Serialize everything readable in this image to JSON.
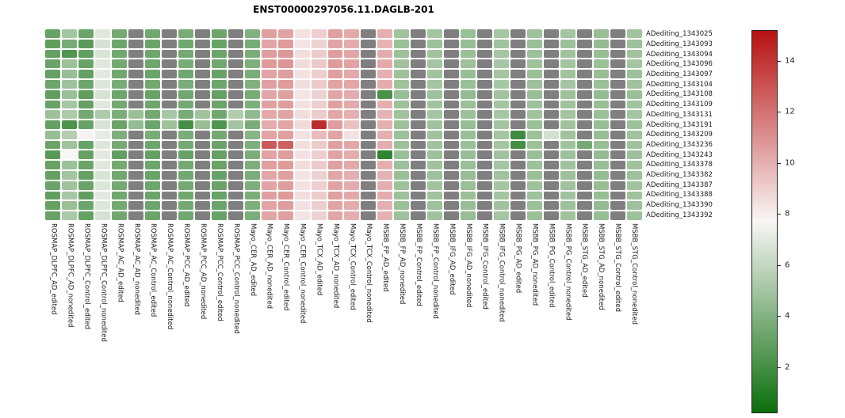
{
  "title": "ENST00000297056.11.DAGLB-201",
  "colors": {
    "na": "#7f7f7f",
    "low": "#0b6e0b",
    "mid": "#f9f6f6",
    "high": "#b71010",
    "background": "#ffffff"
  },
  "chart_data": {
    "type": "heatmap",
    "title": "ENST00000297056.11.DAGLB-201",
    "legend_position": "right",
    "na_color_meaning": "missing value (gray cell)",
    "rows": [
      "ADediting_1343025",
      "ADediting_1343093",
      "ADediting_1343094",
      "ADediting_1343096",
      "ADediting_1343097",
      "ADediting_1343104",
      "ADediting_1343108",
      "ADediting_1343109",
      "ADediting_1343131",
      "ADediting_1343191",
      "ADediting_1343209",
      "ADediting_1343236",
      "ADediting_1343243",
      "ADediting_1343378",
      "ADediting_1343382",
      "ADediting_1343387",
      "ADediting_1343388",
      "ADediting_1343390",
      "ADediting_1343392"
    ],
    "columns": [
      "ROSMAP_DLPFC_AD_edited",
      "ROSMAP_DLPFC_AD_nonedited",
      "ROSMAP_DLPFC_Control_edited",
      "ROSMAP_DLPFC_Control_nonedited",
      "ROSMAP_AC_AD_edited",
      "ROSMAP_AC_AD_nonedited",
      "ROSMAP_AC_Control_edited",
      "ROSMAP_AC_Control_nonedited",
      "ROSMAP_PCC_AD_edited",
      "ROSMAP_PCC_AD_nonedited",
      "ROSMAP_PCC_Control_edited",
      "ROSMAP_PCC_Control_nonedited",
      "Mayo_CER_AD_edited",
      "Mayo_CER_AD_nonedited",
      "Mayo_CER_Control_edited",
      "Mayo_CER_Control_nonedited",
      "Mayo_TCX_AD_edited",
      "Mayo_TCX_AD_nonedited",
      "Mayo_TCX_Control_edited",
      "Mayo_TCX_Control_nonedited",
      "MSBB_FP_AD_edited",
      "MSBB_FP_AD_nonedited",
      "MSBB_FP_Control_edited",
      "MSBB_FP_Control_nonedited",
      "MSBB_IFG_AD_edited",
      "MSBB_IFG_AD_nonedited",
      "MSBB_IFG_Control_edited",
      "MSBB_IFG_Control_nonedited",
      "MSBB_PG_AD_edited",
      "MSBB_PG_AD_nonedited",
      "MSBB_PG_Control_edited",
      "MSBB_PG_Control_nonedited",
      "MSBB_STG_AD_edited",
      "MSBB_STG_AD_nonedited",
      "MSBB_STG_Control_edited",
      "MSBB_STG_Control_nonedited"
    ],
    "values": [
      [
        3.1,
        5.0,
        3.2,
        6.9,
        3.5,
        null,
        3.4,
        null,
        3.6,
        null,
        3.3,
        null,
        3.9,
        10.5,
        10.4,
        8.4,
        9.0,
        10.5,
        10.2,
        null,
        10.0,
        4.9,
        null,
        5.0,
        null,
        4.7,
        null,
        5.1,
        null,
        4.8,
        null,
        5.0,
        null,
        4.6,
        null,
        4.9
      ],
      [
        2.8,
        3.6,
        2.7,
        6.6,
        3.3,
        null,
        3.2,
        null,
        3.4,
        null,
        3.1,
        null,
        3.6,
        10.3,
        10.7,
        8.3,
        8.9,
        10.4,
        10.1,
        null,
        9.9,
        4.7,
        null,
        4.8,
        null,
        4.6,
        null,
        4.9,
        null,
        4.7,
        null,
        4.8,
        null,
        4.5,
        null,
        4.8
      ],
      [
        3.0,
        2.4,
        2.9,
        6.7,
        3.4,
        null,
        3.3,
        null,
        3.5,
        null,
        3.2,
        null,
        3.7,
        10.6,
        10.8,
        8.5,
        9.1,
        10.6,
        10.3,
        null,
        10.1,
        4.8,
        null,
        4.9,
        null,
        4.7,
        null,
        5.0,
        null,
        4.8,
        null,
        4.9,
        null,
        4.6,
        null,
        4.9
      ],
      [
        3.2,
        4.8,
        3.1,
        6.9,
        3.5,
        null,
        3.3,
        null,
        3.6,
        null,
        3.4,
        null,
        3.8,
        10.7,
        10.9,
        8.6,
        9.2,
        10.7,
        10.4,
        null,
        10.2,
        4.9,
        null,
        5.0,
        null,
        4.8,
        null,
        5.1,
        null,
        4.9,
        null,
        5.0,
        null,
        4.7,
        null,
        5.0
      ],
      [
        3.0,
        4.6,
        3.0,
        7.0,
        3.4,
        null,
        3.2,
        null,
        3.4,
        null,
        3.1,
        null,
        3.7,
        10.4,
        10.6,
        8.4,
        9.0,
        10.5,
        10.2,
        null,
        10.0,
        4.8,
        null,
        4.9,
        null,
        4.6,
        null,
        5.0,
        null,
        4.7,
        null,
        4.9,
        null,
        4.6,
        null,
        4.8
      ],
      [
        3.3,
        4.9,
        3.3,
        6.8,
        3.6,
        null,
        3.4,
        null,
        3.7,
        null,
        3.3,
        null,
        3.9,
        10.5,
        10.7,
        8.5,
        9.1,
        10.4,
        10.3,
        null,
        10.1,
        4.9,
        null,
        5.0,
        null,
        4.7,
        null,
        5.1,
        null,
        4.8,
        null,
        5.0,
        null,
        4.7,
        null,
        4.9
      ],
      [
        2.9,
        4.7,
        2.8,
        6.6,
        3.3,
        null,
        3.1,
        null,
        3.4,
        null,
        3.0,
        null,
        3.6,
        10.3,
        10.5,
        8.3,
        8.9,
        10.3,
        10.1,
        null,
        2.2,
        4.6,
        null,
        4.8,
        null,
        4.5,
        null,
        4.9,
        null,
        4.6,
        null,
        4.8,
        null,
        4.5,
        null,
        4.7
      ],
      [
        3.1,
        5.1,
        3.0,
        6.9,
        3.5,
        null,
        3.3,
        null,
        3.5,
        null,
        3.2,
        null,
        3.8,
        10.5,
        10.6,
        8.4,
        9.0,
        10.5,
        10.2,
        null,
        10.0,
        4.8,
        null,
        4.9,
        null,
        4.7,
        null,
        5.0,
        null,
        4.8,
        null,
        4.9,
        null,
        4.6,
        null,
        4.9
      ],
      [
        4.8,
        5.3,
        3.5,
        5.3,
        3.7,
        4.7,
        3.5,
        5.1,
        3.6,
        4.9,
        3.4,
        5.4,
        4.4,
        10.2,
        10.4,
        8.5,
        9.1,
        10.3,
        10.0,
        null,
        9.9,
        4.9,
        null,
        5.0,
        null,
        4.8,
        null,
        5.1,
        null,
        4.9,
        null,
        5.0,
        null,
        4.7,
        null,
        5.0
      ],
      [
        3.0,
        2.3,
        3.1,
        6.7,
        3.2,
        4.5,
        3.3,
        4.8,
        2.0,
        4.6,
        2.4,
        5.0,
        3.7,
        10.1,
        10.3,
        8.6,
        14.3,
        10.6,
        9.4,
        null,
        10.0,
        4.8,
        null,
        4.9,
        null,
        4.6,
        null,
        5.0,
        null,
        4.7,
        null,
        4.9,
        null,
        4.6,
        null,
        4.8
      ],
      [
        4.6,
        5.5,
        7.8,
        7.1,
        3.8,
        null,
        3.6,
        null,
        3.7,
        null,
        3.5,
        null,
        4.1,
        10.4,
        10.5,
        8.4,
        9.6,
        10.4,
        8.4,
        null,
        10.0,
        4.8,
        null,
        4.9,
        null,
        4.7,
        null,
        5.0,
        1.8,
        4.8,
        6.5,
        4.9,
        null,
        4.6,
        null,
        4.9
      ],
      [
        3.2,
        4.9,
        3.1,
        6.8,
        3.5,
        null,
        3.3,
        null,
        3.5,
        null,
        3.2,
        null,
        3.8,
        12.8,
        12.6,
        8.5,
        9.1,
        10.5,
        10.2,
        null,
        10.1,
        4.8,
        null,
        4.9,
        null,
        4.7,
        null,
        5.0,
        2.0,
        4.8,
        null,
        4.9,
        3.5,
        4.6,
        null,
        4.9
      ],
      [
        2.6,
        7.7,
        3.0,
        7.0,
        2.9,
        null,
        3.0,
        null,
        3.1,
        null,
        3.0,
        null,
        3.7,
        10.4,
        10.6,
        8.4,
        9.0,
        10.4,
        10.1,
        null,
        1.4,
        4.7,
        null,
        4.8,
        null,
        4.6,
        null,
        4.9,
        null,
        4.7,
        null,
        4.8,
        null,
        4.5,
        null,
        4.8
      ],
      [
        3.1,
        4.8,
        3.2,
        6.9,
        3.5,
        null,
        3.3,
        null,
        3.5,
        null,
        3.2,
        null,
        3.8,
        10.5,
        10.7,
        8.5,
        9.1,
        10.5,
        10.2,
        null,
        10.0,
        4.8,
        null,
        4.9,
        null,
        4.7,
        null,
        5.0,
        null,
        4.8,
        null,
        4.9,
        null,
        4.6,
        null,
        4.9
      ],
      [
        3.0,
        5.0,
        3.0,
        6.7,
        3.4,
        null,
        3.2,
        null,
        3.4,
        null,
        3.1,
        null,
        3.7,
        10.3,
        10.5,
        8.3,
        8.9,
        10.3,
        10.0,
        null,
        9.9,
        4.7,
        null,
        4.8,
        null,
        4.6,
        null,
        4.9,
        null,
        4.7,
        null,
        4.8,
        null,
        4.5,
        null,
        4.8
      ],
      [
        3.2,
        4.9,
        3.1,
        6.8,
        3.5,
        null,
        3.3,
        null,
        3.5,
        null,
        3.2,
        null,
        3.8,
        10.4,
        10.6,
        8.4,
        9.0,
        10.4,
        10.1,
        null,
        10.0,
        4.8,
        null,
        4.9,
        null,
        4.7,
        null,
        5.0,
        null,
        4.8,
        null,
        4.9,
        null,
        4.6,
        null,
        4.9
      ],
      [
        2.9,
        5.1,
        2.9,
        7.0,
        3.4,
        null,
        3.2,
        null,
        3.4,
        null,
        3.1,
        null,
        3.7,
        10.5,
        10.7,
        8.5,
        9.1,
        10.5,
        10.2,
        null,
        10.1,
        4.8,
        null,
        4.9,
        null,
        4.7,
        null,
        5.0,
        null,
        4.8,
        null,
        4.9,
        null,
        4.6,
        null,
        4.9
      ],
      [
        3.0,
        4.7,
        3.2,
        6.8,
        3.5,
        null,
        3.3,
        null,
        3.5,
        null,
        3.2,
        null,
        3.8,
        10.4,
        10.6,
        8.4,
        9.0,
        10.4,
        10.1,
        null,
        10.0,
        4.7,
        null,
        4.8,
        null,
        4.6,
        null,
        4.9,
        null,
        4.7,
        null,
        4.8,
        null,
        4.5,
        null,
        4.8
      ],
      [
        3.1,
        5.2,
        3.0,
        6.6,
        3.4,
        null,
        3.2,
        null,
        3.4,
        null,
        3.1,
        null,
        3.7,
        10.3,
        10.5,
        8.3,
        8.9,
        10.3,
        10.0,
        null,
        9.9,
        4.8,
        null,
        4.9,
        null,
        4.6,
        null,
        5.0,
        null,
        4.7,
        null,
        4.9,
        null,
        4.6,
        null,
        4.8
      ]
    ],
    "colorbar": {
      "vmin": 0.2,
      "vmax": 15.2,
      "ticks": [
        2,
        4,
        6,
        8,
        10,
        12,
        14
      ],
      "colormap": "green-white-red"
    }
  }
}
